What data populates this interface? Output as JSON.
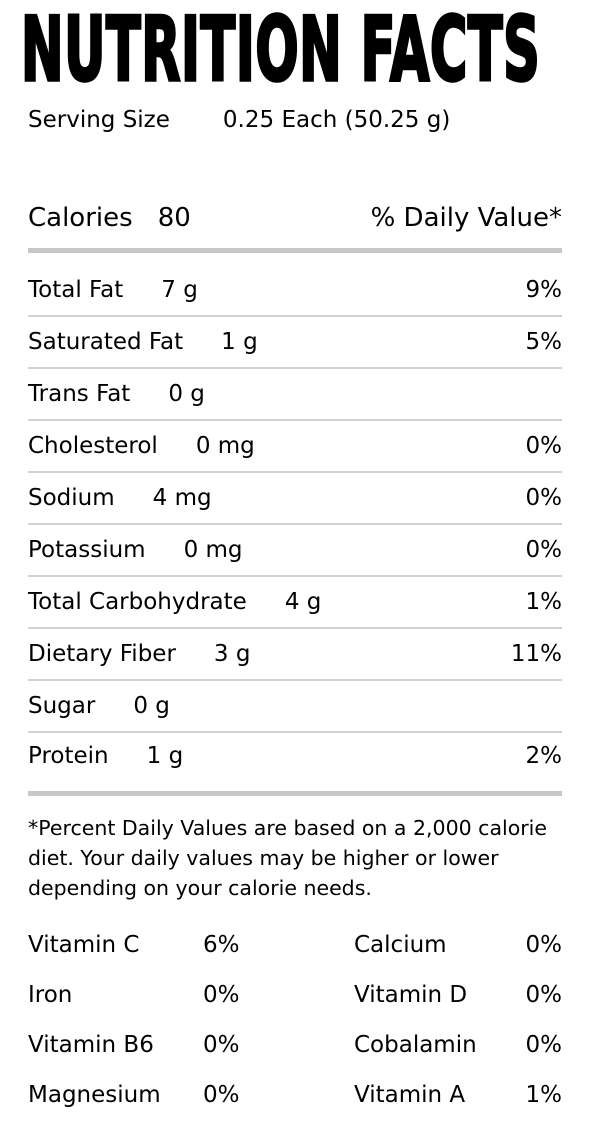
{
  "title": "NUTRITION FACTS",
  "serving": {
    "label": "Serving Size",
    "value": "0.25 Each (50.25 g)"
  },
  "calories": {
    "label": "Calories",
    "value": "80",
    "daily_value_header": "% Daily Value*"
  },
  "nutrients": [
    {
      "name": "Total Fat",
      "amount": "7 g",
      "dv": "9%"
    },
    {
      "name": "Saturated Fat",
      "amount": "1 g",
      "dv": "5%"
    },
    {
      "name": "Trans Fat",
      "amount": "0 g",
      "dv": ""
    },
    {
      "name": "Cholesterol",
      "amount": "0 mg",
      "dv": "0%"
    },
    {
      "name": "Sodium",
      "amount": "4 mg",
      "dv": "0%"
    },
    {
      "name": "Potassium",
      "amount": "0 mg",
      "dv": "0%"
    },
    {
      "name": "Total Carbohydrate",
      "amount": "4 g",
      "dv": "1%"
    },
    {
      "name": "Dietary Fiber",
      "amount": "3 g",
      "dv": "11%"
    },
    {
      "name": "Sugar",
      "amount": "0 g",
      "dv": ""
    },
    {
      "name": "Protein",
      "amount": "1 g",
      "dv": "2%"
    }
  ],
  "footnote": {
    "lines": [
      "*Percent Daily Values are based on a 2,000 calorie",
      "diet. Your daily values may be higher or lower",
      "depending on your calorie needs."
    ]
  },
  "micronutrients": [
    {
      "left_name": "Vitamin C",
      "left_dv": "6%",
      "right_name": "Calcium",
      "right_dv": "0%"
    },
    {
      "left_name": "Iron",
      "left_dv": "0%",
      "right_name": "Vitamin D",
      "right_dv": "0%"
    },
    {
      "left_name": "Vitamin B6",
      "left_dv": "0%",
      "right_name": "Cobalamin",
      "right_dv": "0%"
    },
    {
      "left_name": "Magnesium",
      "left_dv": "0%",
      "right_name": "Vitamin A",
      "right_dv": "1%"
    }
  ],
  "colors": {
    "background": "#ffffff",
    "text": "#000000",
    "divider_thin": "#d1d1d1",
    "divider_thick": "#c7c7c7"
  }
}
